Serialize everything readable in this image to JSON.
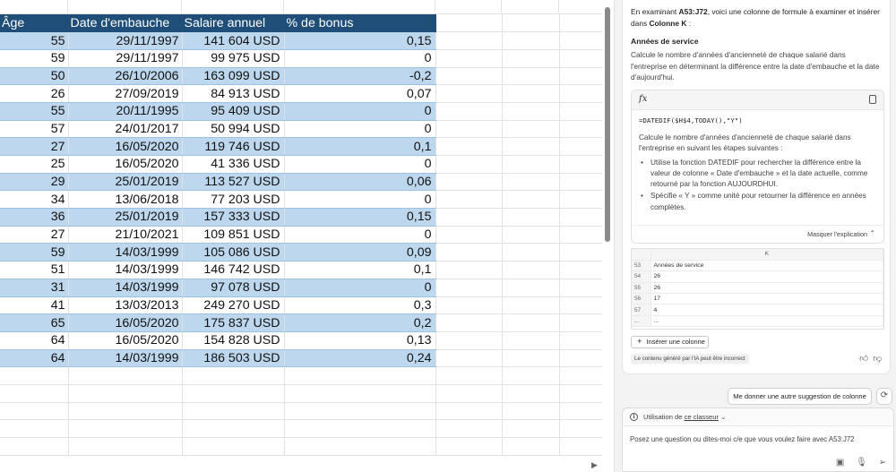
{
  "sheet": {
    "headers": [
      "Âge",
      "Date d'embauche",
      "Salaire annuel",
      "% de bonus"
    ],
    "rows": [
      {
        "age": "55",
        "date": "29/11/1997",
        "salary": "141 604 USD",
        "bonus": "0,15"
      },
      {
        "age": "59",
        "date": "29/11/1997",
        "salary": "99 975 USD",
        "bonus": "0"
      },
      {
        "age": "50",
        "date": "26/10/2006",
        "salary": "163 099 USD",
        "bonus": "-0,2"
      },
      {
        "age": "26",
        "date": "27/09/2019",
        "salary": "84 913 USD",
        "bonus": "0,07"
      },
      {
        "age": "55",
        "date": "20/11/1995",
        "salary": "95 409 USD",
        "bonus": "0"
      },
      {
        "age": "57",
        "date": "24/01/2017",
        "salary": "50 994 USD",
        "bonus": "0"
      },
      {
        "age": "27",
        "date": "16/05/2020",
        "salary": "119 746 USD",
        "bonus": "0,1"
      },
      {
        "age": "25",
        "date": "16/05/2020",
        "salary": "41 336 USD",
        "bonus": "0"
      },
      {
        "age": "29",
        "date": "25/01/2019",
        "salary": "113 527 USD",
        "bonus": "0,06"
      },
      {
        "age": "34",
        "date": "13/06/2018",
        "salary": "77 203 USD",
        "bonus": "0"
      },
      {
        "age": "36",
        "date": "25/01/2019",
        "salary": "157 333 USD",
        "bonus": "0,15"
      },
      {
        "age": "27",
        "date": "21/10/2021",
        "salary": "109 851 USD",
        "bonus": "0"
      },
      {
        "age": "59",
        "date": "14/03/1999",
        "salary": "105 086 USD",
        "bonus": "0,09"
      },
      {
        "age": "51",
        "date": "14/03/1999",
        "salary": "146 742 USD",
        "bonus": "0,1"
      },
      {
        "age": "31",
        "date": "14/03/1999",
        "salary": "97 078 USD",
        "bonus": "0"
      },
      {
        "age": "41",
        "date": "13/03/2013",
        "salary": "249 270 USD",
        "bonus": "0,3"
      },
      {
        "age": "65",
        "date": "16/05/2020",
        "salary": "175 837 USD",
        "bonus": "0,2"
      },
      {
        "age": "64",
        "date": "16/05/2020",
        "salary": "154 828 USD",
        "bonus": "0,13"
      },
      {
        "age": "64",
        "date": "14/03/1999",
        "salary": "186 503 USD",
        "bonus": "0,24"
      }
    ]
  },
  "copilot": {
    "intro_prefix": "En examinant ",
    "intro_range": "A53:J72",
    "intro_middle": ", voici une colonne de formule à examiner et insérer dans ",
    "intro_target": "Colonne K",
    "intro_suffix": " :",
    "section_title": "Années de service",
    "section_desc": "Calcule le nombre d'années d'ancienneté de chaque salarié dans l'entreprise en déterminant la différence entre la date d'embauche et la date d'aujourd'hui.",
    "fx_label": "fx",
    "formula": "=DATEDIF($H$4,TODAY(),\"Y\")",
    "explain_intro": "Calcule le nombre d'années d'ancienneté de chaque salarié dans l'entreprise en suivant les étapes suivantes :",
    "bullet_1": "Utilise la fonction DATEDIF pour rechercher la différence entre la valeur de colonne « Date d'embauche » et la date actuelle, comme retourné par la fonction AUJOURDHUI.",
    "bullet_2": "Spécifie « Y » comme unité pour retourner la différence en années complètes.",
    "hide_label": "Masquer l'explication",
    "preview": {
      "col_letter": "K",
      "rows": [
        {
          "n": "53",
          "v": "Années de service"
        },
        {
          "n": "54",
          "v": "26"
        },
        {
          "n": "55",
          "v": "26"
        },
        {
          "n": "56",
          "v": "17"
        },
        {
          "n": "57",
          "v": "4"
        },
        {
          "n": "...",
          "v": "..."
        }
      ]
    },
    "insert_label": "Insérer une colonne",
    "ai_warning": "Le contenu généré par l'IA peut être incorrect",
    "suggest_label": "Me donner une autre suggestion de colonne",
    "context_prefix": "Utilisation de ",
    "context_link": "ce classeur",
    "prompt_placeholder": "Posez une question ou dites-moi c/e que vous voulez faire avec A53:J72"
  },
  "colors": {
    "header_bg": "#1f4e78",
    "band_bg": "#bdd7ee",
    "pane_bg": "#f3f3f3"
  }
}
